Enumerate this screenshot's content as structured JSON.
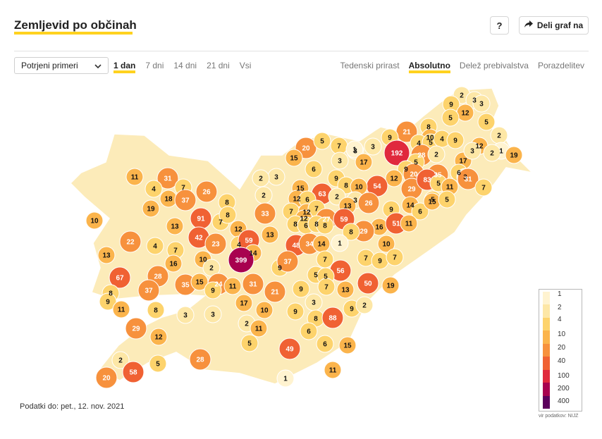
{
  "header": {
    "title": "Zemljevid po občinah",
    "help_label": "?",
    "share_label": "Deli graf na"
  },
  "controls": {
    "select_value": "Potrjeni primeri",
    "range_tabs": [
      "1 dan",
      "7 dni",
      "14 dni",
      "21 dni",
      "Vsi"
    ],
    "range_active": 0,
    "mode_tabs": [
      "Tedenski prirast",
      "Absolutno",
      "Delež prebivalstva",
      "Porazdelitev"
    ],
    "mode_active": 1
  },
  "colors": {
    "accent": "#ffd21f",
    "scale": [
      "#fff3d0",
      "#fde7a6",
      "#fdd36c",
      "#fbb44c",
      "#f7913d",
      "#f06133",
      "#e0293d",
      "#a8014f",
      "#5c005c"
    ]
  },
  "legend": {
    "labels": [
      "1",
      "2",
      "4",
      "10",
      "20",
      "40",
      "100",
      "200",
      "400"
    ]
  },
  "map_values": [
    {
      "id": "m1",
      "v": "2"
    },
    {
      "id": "m2",
      "v": "3"
    },
    {
      "id": "m3",
      "v": "9"
    },
    {
      "id": "m4",
      "v": "12"
    },
    {
      "id": "m5",
      "v": "3"
    },
    {
      "id": "m6",
      "v": "5"
    },
    {
      "id": "m7",
      "v": "5"
    },
    {
      "id": "m8",
      "v": "2"
    },
    {
      "id": "m9",
      "v": "21"
    },
    {
      "id": "m10",
      "v": "8"
    },
    {
      "id": "m11",
      "v": "9"
    },
    {
      "id": "m12",
      "v": "192"
    },
    {
      "id": "m13",
      "v": "10"
    },
    {
      "id": "m14",
      "v": "4"
    },
    {
      "id": "m15",
      "v": "5"
    },
    {
      "id": "m16",
      "v": "4"
    },
    {
      "id": "m17",
      "v": "9"
    },
    {
      "id": "m18",
      "v": "12"
    },
    {
      "id": "m19",
      "v": "1"
    },
    {
      "id": "m20",
      "v": "19"
    },
    {
      "id": "m21",
      "v": "28"
    },
    {
      "id": "m22",
      "v": "2"
    },
    {
      "id": "m23",
      "v": "17"
    },
    {
      "id": "m24",
      "v": "3"
    },
    {
      "id": "m25",
      "v": "2"
    },
    {
      "id": "m26",
      "v": "5"
    },
    {
      "id": "m27",
      "v": "20"
    },
    {
      "id": "m28",
      "v": "5"
    },
    {
      "id": "m29",
      "v": "7"
    },
    {
      "id": "m30",
      "v": "3"
    },
    {
      "id": "m31",
      "v": "1"
    },
    {
      "id": "m32",
      "v": "15"
    },
    {
      "id": "m33",
      "v": "3"
    },
    {
      "id": "m34",
      "v": "3"
    },
    {
      "id": "m35",
      "v": "6"
    },
    {
      "id": "m36",
      "v": "17"
    },
    {
      "id": "m37",
      "v": "9"
    },
    {
      "id": "m38",
      "v": "20"
    },
    {
      "id": "m39",
      "v": "6"
    },
    {
      "id": "m40",
      "v": "35"
    },
    {
      "id": "m41",
      "v": "3"
    },
    {
      "id": "m42",
      "v": "9"
    },
    {
      "id": "m43",
      "v": "12"
    },
    {
      "id": "m44",
      "v": "54"
    },
    {
      "id": "m45",
      "v": "29"
    },
    {
      "id": "m46",
      "v": "83"
    },
    {
      "id": "m47",
      "v": "5"
    },
    {
      "id": "m48",
      "v": "11"
    },
    {
      "id": "m49",
      "v": "31"
    },
    {
      "id": "m50",
      "v": "7"
    },
    {
      "id": "m51",
      "v": "11"
    },
    {
      "id": "m52",
      "v": "31"
    },
    {
      "id": "m53",
      "v": "4"
    },
    {
      "id": "m54",
      "v": "18"
    },
    {
      "id": "m55",
      "v": "7"
    },
    {
      "id": "m56",
      "v": "26"
    },
    {
      "id": "m57",
      "v": "3"
    },
    {
      "id": "m58",
      "v": "2"
    },
    {
      "id": "m59",
      "v": "15"
    },
    {
      "id": "m60",
      "v": "63"
    },
    {
      "id": "m61",
      "v": "8"
    },
    {
      "id": "m62",
      "v": "10"
    },
    {
      "id": "m63",
      "v": "3"
    },
    {
      "id": "m64",
      "v": "37"
    },
    {
      "id": "m65",
      "v": "19"
    },
    {
      "id": "m66",
      "v": "8"
    },
    {
      "id": "m67",
      "v": "2"
    },
    {
      "id": "m68",
      "v": "12"
    },
    {
      "id": "m69",
      "v": "6"
    },
    {
      "id": "m70",
      "v": "2"
    },
    {
      "id": "m71",
      "v": "13"
    },
    {
      "id": "m72",
      "v": "26"
    },
    {
      "id": "m73",
      "v": "14"
    },
    {
      "id": "m74",
      "v": "6"
    },
    {
      "id": "m75",
      "v": "5"
    },
    {
      "id": "m76",
      "v": "15"
    },
    {
      "id": "m77",
      "v": "5"
    },
    {
      "id": "m78",
      "v": "10"
    },
    {
      "id": "m79",
      "v": "91"
    },
    {
      "id": "m80",
      "v": "7"
    },
    {
      "id": "m81",
      "v": "8"
    },
    {
      "id": "m82",
      "v": "33"
    },
    {
      "id": "m83",
      "v": "7"
    },
    {
      "id": "m84",
      "v": "12"
    },
    {
      "id": "m85",
      "v": "7"
    },
    {
      "id": "m86",
      "v": "12"
    },
    {
      "id": "m87",
      "v": "27"
    },
    {
      "id": "m88",
      "v": "59"
    },
    {
      "id": "m89",
      "v": "9"
    },
    {
      "id": "m90",
      "v": "16"
    },
    {
      "id": "m91",
      "v": "51"
    },
    {
      "id": "m92",
      "v": "11"
    },
    {
      "id": "m93",
      "v": "13"
    },
    {
      "id": "m94",
      "v": "12"
    },
    {
      "id": "m95",
      "v": "8"
    },
    {
      "id": "m96",
      "v": "6"
    },
    {
      "id": "m97",
      "v": "8"
    },
    {
      "id": "m98",
      "v": "8"
    },
    {
      "id": "m99",
      "v": "29"
    },
    {
      "id": "m100",
      "v": "22"
    },
    {
      "id": "m101",
      "v": "42"
    },
    {
      "id": "m102",
      "v": "23"
    },
    {
      "id": "m103",
      "v": "4"
    },
    {
      "id": "m104",
      "v": "59"
    },
    {
      "id": "m105",
      "v": "13"
    },
    {
      "id": "m106",
      "v": "48"
    },
    {
      "id": "m107",
      "v": "34"
    },
    {
      "id": "m108",
      "v": "14"
    },
    {
      "id": "m109",
      "v": "8"
    },
    {
      "id": "m110",
      "v": "1"
    },
    {
      "id": "m111",
      "v": "10"
    },
    {
      "id": "m112",
      "v": "13"
    },
    {
      "id": "m113",
      "v": "4"
    },
    {
      "id": "m114",
      "v": "7"
    },
    {
      "id": "m115",
      "v": "14"
    },
    {
      "id": "m116",
      "v": "7"
    },
    {
      "id": "m117",
      "v": "7"
    },
    {
      "id": "m118",
      "v": "9"
    },
    {
      "id": "m119",
      "v": "16"
    },
    {
      "id": "m120",
      "v": "10"
    },
    {
      "id": "m121",
      "v": "399"
    },
    {
      "id": "m122",
      "v": "9"
    },
    {
      "id": "m123",
      "v": "37"
    },
    {
      "id": "m124",
      "v": "7"
    },
    {
      "id": "m125",
      "v": "56"
    },
    {
      "id": "m126",
      "v": "67"
    },
    {
      "id": "m127",
      "v": "28"
    },
    {
      "id": "m128",
      "v": "2"
    },
    {
      "id": "m129",
      "v": "5"
    },
    {
      "id": "m130",
      "v": "5"
    },
    {
      "id": "m131",
      "v": "50"
    },
    {
      "id": "m132",
      "v": "19"
    },
    {
      "id": "m133",
      "v": "8"
    },
    {
      "id": "m134",
      "v": "37"
    },
    {
      "id": "m135",
      "v": "35"
    },
    {
      "id": "m136",
      "v": "15"
    },
    {
      "id": "m137",
      "v": "24"
    },
    {
      "id": "m138",
      "v": "11"
    },
    {
      "id": "m139",
      "v": "31"
    },
    {
      "id": "m140",
      "v": "21"
    },
    {
      "id": "m141",
      "v": "9"
    },
    {
      "id": "m142",
      "v": "7"
    },
    {
      "id": "m143",
      "v": "13"
    },
    {
      "id": "m144",
      "v": "9"
    },
    {
      "id": "m145",
      "v": "9"
    },
    {
      "id": "m146",
      "v": "3"
    },
    {
      "id": "m147",
      "v": "9"
    },
    {
      "id": "m148",
      "v": "2"
    },
    {
      "id": "m149",
      "v": "11"
    },
    {
      "id": "m150",
      "v": "8"
    },
    {
      "id": "m151",
      "v": "17"
    },
    {
      "id": "m152",
      "v": "10"
    },
    {
      "id": "m153",
      "v": "9"
    },
    {
      "id": "m154",
      "v": "3"
    },
    {
      "id": "m155",
      "v": "3"
    },
    {
      "id": "m156",
      "v": "8"
    },
    {
      "id": "m157",
      "v": "88"
    },
    {
      "id": "m158",
      "v": "2"
    },
    {
      "id": "m159",
      "v": "11"
    },
    {
      "id": "m160",
      "v": "6"
    },
    {
      "id": "m161",
      "v": "29"
    },
    {
      "id": "m162",
      "v": "12"
    },
    {
      "id": "m163",
      "v": "5"
    },
    {
      "id": "m164",
      "v": "49"
    },
    {
      "id": "m165",
      "v": "6"
    },
    {
      "id": "m166",
      "v": "15"
    },
    {
      "id": "m167",
      "v": "2"
    },
    {
      "id": "m168",
      "v": "5"
    },
    {
      "id": "m169",
      "v": "28"
    },
    {
      "id": "m170",
      "v": "58"
    },
    {
      "id": "m171",
      "v": "20"
    },
    {
      "id": "m172",
      "v": "11"
    },
    {
      "id": "m173",
      "v": "1"
    }
  ],
  "footer": {
    "data_date": "Podatki do: pet., 12. nov. 2021",
    "source": "vir podatkov: NIJZ"
  }
}
